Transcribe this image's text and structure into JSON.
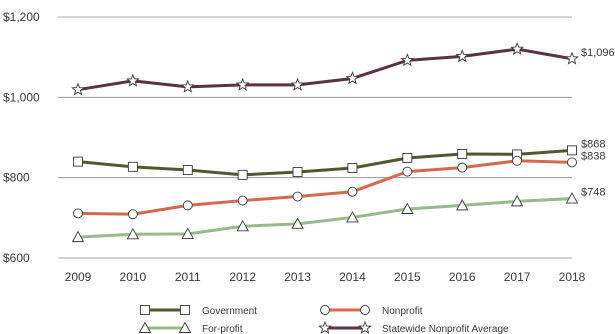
{
  "chart_data": {
    "type": "line",
    "title": "",
    "xlabel": "",
    "ylabel": "",
    "x": [
      "2009",
      "2010",
      "2011",
      "2012",
      "2013",
      "2014",
      "2015",
      "2016",
      "2017",
      "2018"
    ],
    "ylim": [
      600,
      1200
    ],
    "yticks": [
      600,
      800,
      1000,
      1200
    ],
    "ytick_labels": [
      "$600",
      "$800",
      "$1,000",
      "$1,200"
    ],
    "grid": "horizontal",
    "legend_position": "bottom",
    "series": [
      {
        "name": "Government",
        "color": "#4d5a2f",
        "marker": "square",
        "values": [
          840,
          827,
          819,
          807,
          814,
          824,
          849,
          859,
          858,
          868
        ],
        "end_label": "$868"
      },
      {
        "name": "Nonprofit",
        "color": "#d4694f",
        "marker": "circle",
        "values": [
          711,
          709,
          731,
          743,
          753,
          765,
          815,
          825,
          842,
          838
        ],
        "end_label": "$838"
      },
      {
        "name": "For-profit",
        "color": "#9ab98a",
        "marker": "triangle",
        "values": [
          652,
          659,
          660,
          679,
          685,
          701,
          722,
          731,
          741,
          748
        ],
        "end_label": "$748"
      },
      {
        "name": "Statewide Nonprofit Average",
        "color": "#5a3240",
        "marker": "star",
        "values": [
          1019,
          1041,
          1026,
          1031,
          1031,
          1047,
          1092,
          1102,
          1120,
          1096
        ],
        "end_label": "$1,096"
      }
    ]
  }
}
